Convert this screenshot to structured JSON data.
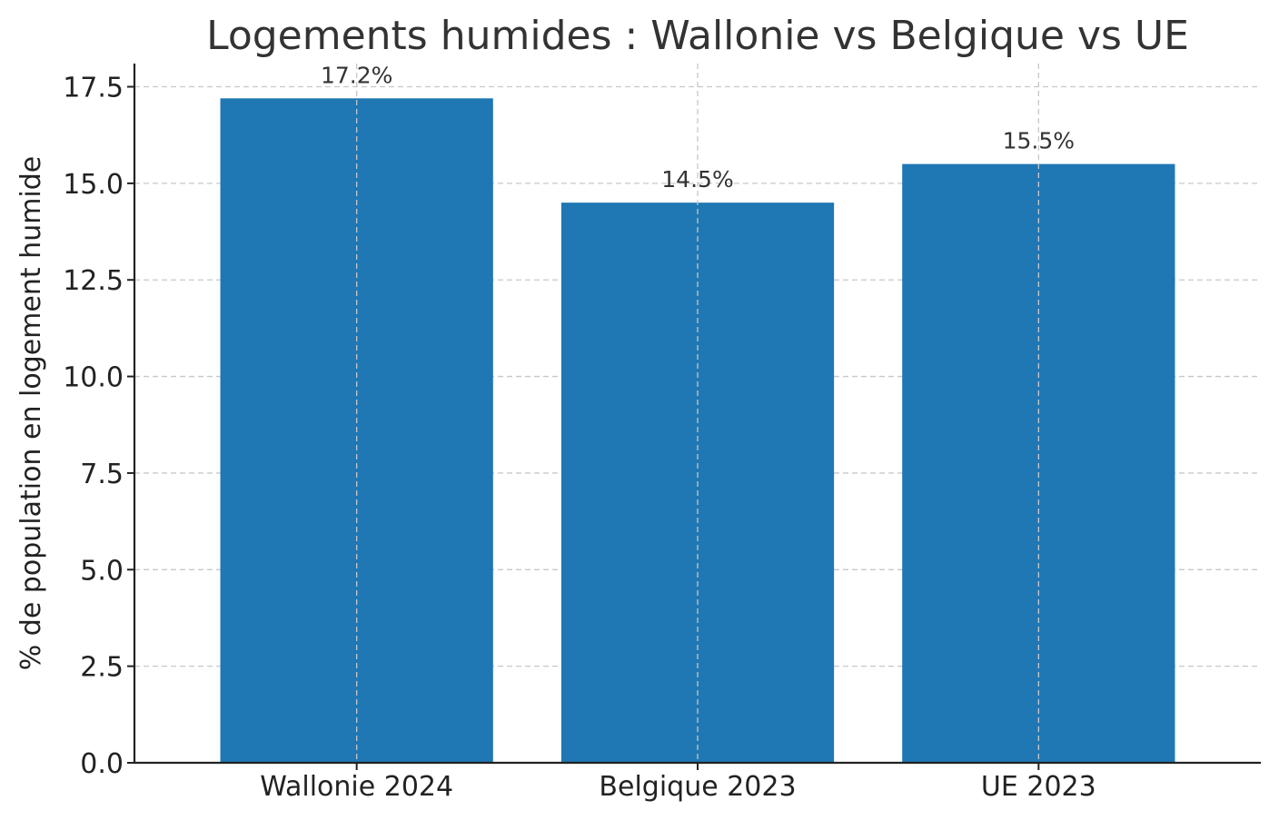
{
  "chart_data": {
    "type": "bar",
    "title": "Logements humides : Wallonie vs Belgique vs UE",
    "xlabel": "",
    "ylabel": "% de population en logement humide",
    "categories": [
      "Wallonie 2024",
      "Belgique 2023",
      "UE 2023"
    ],
    "values": [
      17.2,
      14.5,
      15.5
    ],
    "value_labels": [
      "17.2%",
      "14.5%",
      "15.5%"
    ],
    "ylim": [
      0,
      18.1
    ],
    "yticks": [
      0.0,
      2.5,
      5.0,
      7.5,
      10.0,
      12.5,
      15.0,
      17.5
    ],
    "ytick_labels": [
      "0.0",
      "2.5",
      "5.0",
      "7.5",
      "10.0",
      "12.5",
      "15.0",
      "17.5"
    ],
    "grid": true,
    "bar_color": "#1f77b4"
  }
}
